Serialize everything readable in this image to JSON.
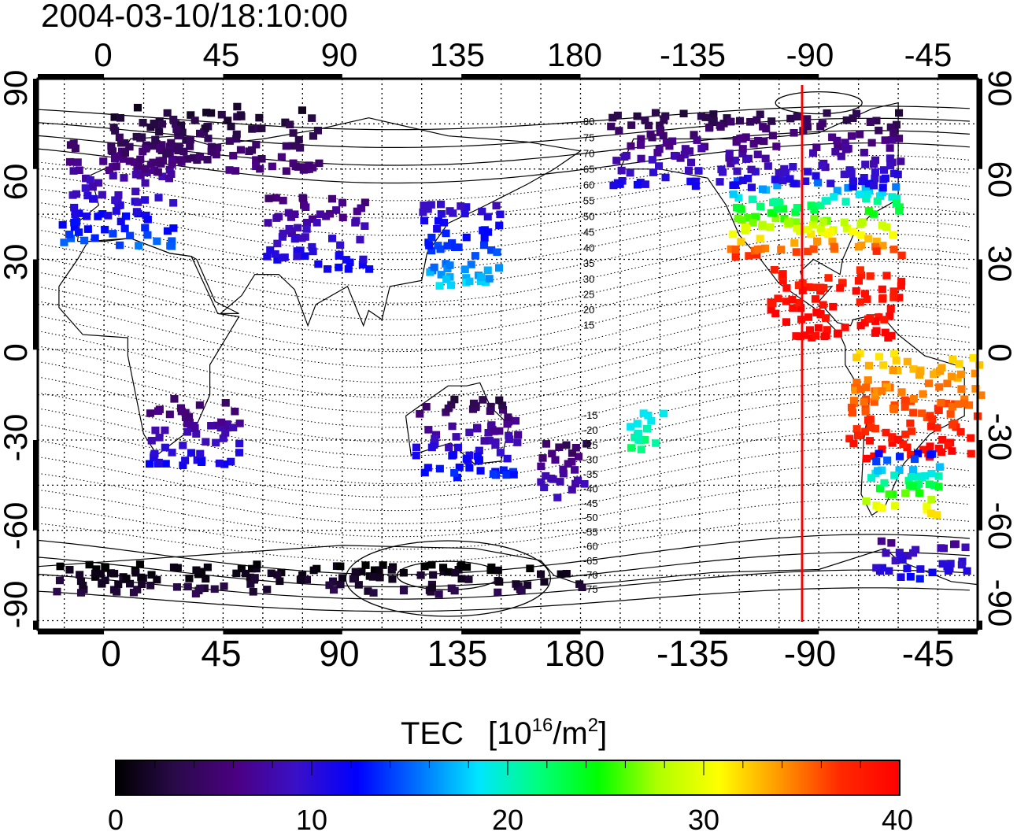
{
  "timestamp": "2004-03-10/18:10:00",
  "longitude_labels": [
    "0",
    "45",
    "90",
    "135",
    "180",
    "-135",
    "-90",
    "-45"
  ],
  "latitude_labels_left": [
    "90",
    "60",
    "30",
    "0",
    "-30",
    "-60",
    "-90"
  ],
  "latitude_labels_right": [
    "90",
    "60",
    "30",
    "0",
    "-30",
    "-60",
    "-90"
  ],
  "map": {
    "lon_min": -25,
    "lon_max": 330,
    "lat_min": -93,
    "lat_max": 90,
    "grid_lons": [
      -15,
      0,
      15,
      30,
      45,
      60,
      75,
      90,
      105,
      120,
      135,
      150,
      165,
      180,
      195,
      210,
      225,
      240,
      255,
      270,
      285,
      300,
      315
    ],
    "grid_lats": [
      -90,
      -75,
      -60,
      -45,
      -30,
      -15,
      0,
      15,
      30,
      45,
      60,
      75,
      90
    ],
    "subsolar_meridian": -93
  },
  "contour_labels": [
    "80",
    "75",
    "70",
    "65",
    "60",
    "55",
    "50",
    "45",
    "40",
    "35",
    "30",
    "25",
    "20",
    "15",
    "-15",
    "-20",
    "-25",
    "-30",
    "-35",
    "-40",
    "-45",
    "-50",
    "-55",
    "-60",
    "-65",
    "-70",
    "-75"
  ],
  "colorbar": {
    "title": "TEC",
    "unit_base": "[10",
    "unit_exp": "16",
    "unit_mid": "/m",
    "unit_exp2": "2",
    "unit_end": "]",
    "min": 0,
    "max": 40,
    "tick_labels": [
      "0",
      "10",
      "20",
      "30",
      "40"
    ],
    "colors": [
      "#000000",
      "#2a0a4a",
      "#4b0082",
      "#3a10c8",
      "#0000ff",
      "#0070ff",
      "#00e5ff",
      "#00ff7f",
      "#00ff00",
      "#b0ff00",
      "#ffff00",
      "#ff9900",
      "#ff2a00",
      "#ff0000"
    ]
  },
  "tec_regions": [
    {
      "name": "europe",
      "lon": [
        -18,
        25
      ],
      "lat": [
        35,
        70
      ],
      "tec": [
        4,
        15
      ]
    },
    {
      "name": "eurasia-north",
      "lon": [
        0,
        80
      ],
      "lat": [
        60,
        82
      ],
      "tec": [
        2,
        6
      ]
    },
    {
      "name": "central-asia",
      "lon": [
        60,
        100
      ],
      "lat": [
        28,
        52
      ],
      "tec": [
        5,
        12
      ]
    },
    {
      "name": "east-asia",
      "lon": [
        118,
        150
      ],
      "lat": [
        22,
        50
      ],
      "tec": [
        9,
        18
      ]
    },
    {
      "name": "north-america",
      "lon": [
        235,
        300
      ],
      "lat": [
        32,
        58
      ],
      "tec": [
        14,
        38
      ]
    },
    {
      "name": "canada-alaska",
      "lon": [
        190,
        300
      ],
      "lat": [
        55,
        80
      ],
      "tec": [
        3,
        11
      ]
    },
    {
      "name": "central-america",
      "lon": [
        250,
        300
      ],
      "lat": [
        5,
        28
      ],
      "tec": [
        38,
        40
      ]
    },
    {
      "name": "south-america",
      "lon": [
        280,
        330
      ],
      "lat": [
        -35,
        0
      ],
      "tec": [
        32,
        40
      ]
    },
    {
      "name": "patagonia",
      "lon": [
        285,
        315
      ],
      "lat": [
        -55,
        -33
      ],
      "tec": [
        12,
        34
      ]
    },
    {
      "name": "australia",
      "lon": [
        115,
        155
      ],
      "lat": [
        -42,
        -15
      ],
      "tec": [
        3,
        14
      ]
    },
    {
      "name": "new-zealand",
      "lon": [
        163,
        182
      ],
      "lat": [
        -50,
        -30
      ],
      "tec": [
        4,
        10
      ]
    },
    {
      "name": "pacific",
      "lon": [
        197,
        210
      ],
      "lat": [
        -32,
        -15
      ],
      "tec": [
        17,
        22
      ]
    },
    {
      "name": "southern-africa",
      "lon": [
        15,
        50
      ],
      "lat": [
        -38,
        -15
      ],
      "tec": [
        4,
        12
      ]
    },
    {
      "name": "antarctica",
      "lon": [
        -20,
        180
      ],
      "lat": [
        -80,
        -70
      ],
      "tec": [
        0,
        3
      ]
    },
    {
      "name": "antarctica-east",
      "lon": [
        290,
        325
      ],
      "lat": [
        -75,
        -62
      ],
      "tec": [
        7,
        12
      ]
    }
  ]
}
